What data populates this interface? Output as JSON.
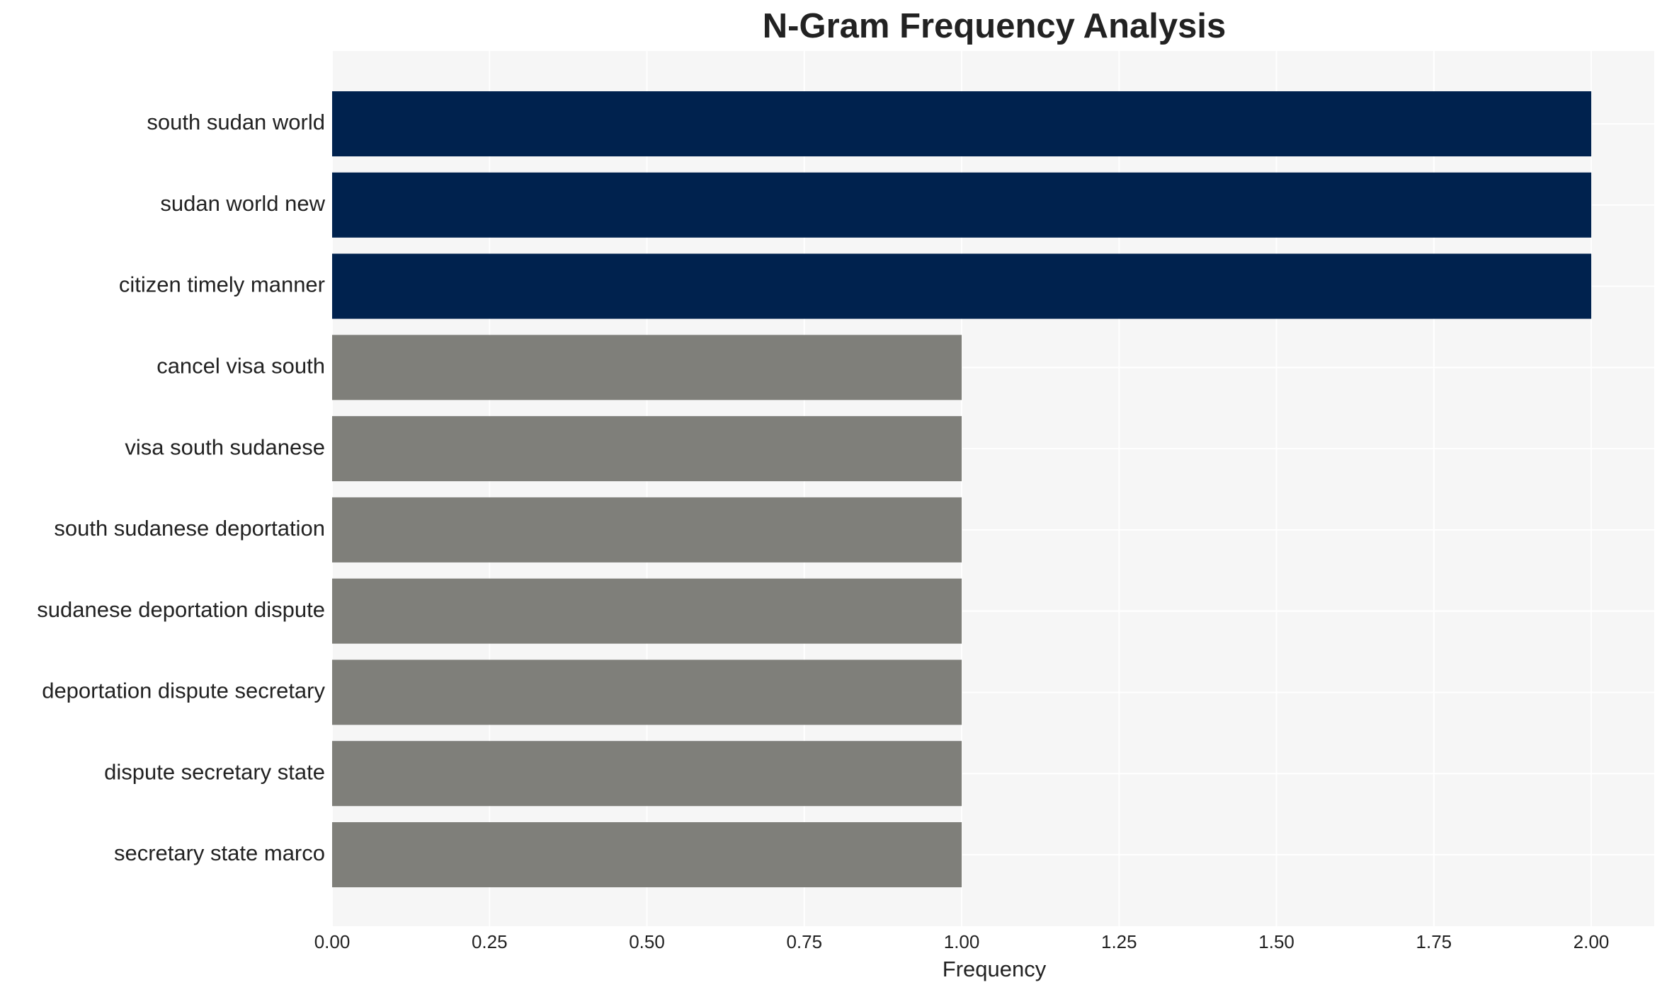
{
  "chart_data": {
    "type": "barh",
    "title": "N-Gram Frequency Analysis",
    "xlabel": "Frequency",
    "categories": [
      "south sudan world",
      "sudan world new",
      "citizen timely manner",
      "cancel visa south",
      "visa south sudanese",
      "south sudanese deportation",
      "sudanese deportation dispute",
      "deportation dispute secretary",
      "dispute secretary state",
      "secretary state marco"
    ],
    "values": [
      2,
      2,
      2,
      1,
      1,
      1,
      1,
      1,
      1,
      1
    ],
    "colors": [
      "#00224e",
      "#00224e",
      "#00224e",
      "#7f7f7a",
      "#7f7f7a",
      "#7f7f7a",
      "#7f7f7a",
      "#7f7f7a",
      "#7f7f7a",
      "#7f7f7a"
    ],
    "xlim": [
      0,
      2.1
    ],
    "xticks": [
      {
        "value": 0,
        "label": "0.00"
      },
      {
        "value": 0.25,
        "label": "0.25"
      },
      {
        "value": 0.5,
        "label": "0.50"
      },
      {
        "value": 0.75,
        "label": "0.75"
      },
      {
        "value": 1,
        "label": "1.00"
      },
      {
        "value": 1.25,
        "label": "1.25"
      },
      {
        "value": 1.5,
        "label": "1.50"
      },
      {
        "value": 1.75,
        "label": "1.75"
      },
      {
        "value": 2,
        "label": "2.00"
      }
    ],
    "grid": true
  }
}
